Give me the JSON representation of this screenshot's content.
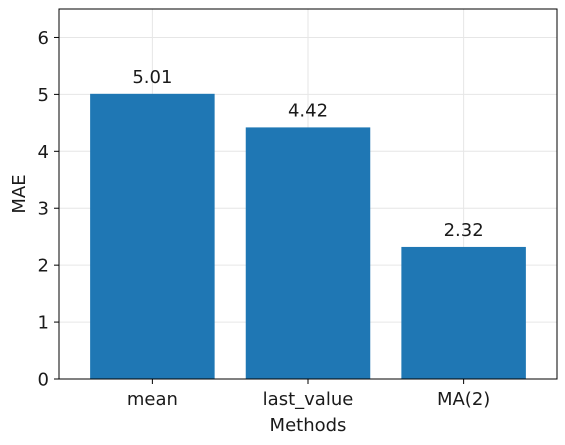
{
  "chart_data": {
    "type": "bar",
    "categories": [
      "mean",
      "last_value",
      "MA(2)"
    ],
    "values": [
      5.01,
      4.42,
      2.32
    ],
    "data_labels": [
      "5.01",
      "4.42",
      "2.32"
    ],
    "xlabel": "Methods",
    "ylabel": "MAE",
    "ylim": [
      0,
      6.5
    ],
    "yticks": [
      0,
      1,
      2,
      3,
      4,
      5,
      6
    ],
    "ytick_labels": [
      "0",
      "1",
      "2",
      "3",
      "4",
      "5",
      "6"
    ],
    "grid": true,
    "bar_color": "#1f77b4"
  }
}
